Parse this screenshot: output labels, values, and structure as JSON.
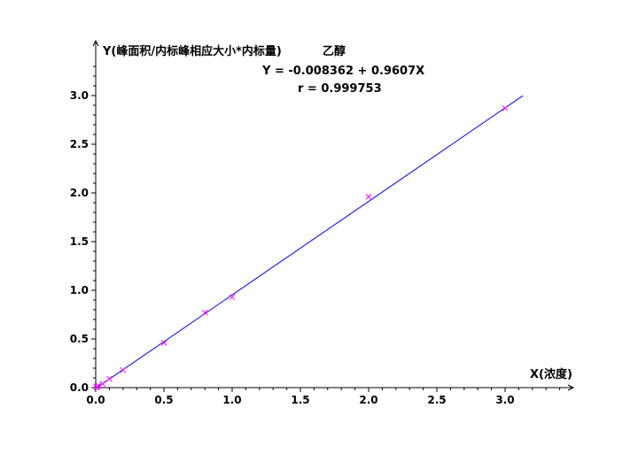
{
  "chart_data": {
    "type": "scatter",
    "title": "乙醇",
    "ylabel": "Y(峰面积/内标峰相应大小*内标量)",
    "xlabel": "X(浓度)",
    "equation": "Y = -0.008362 + 0.9607X",
    "correlation": "r = 0.999753",
    "xlim": [
      0,
      3.5
    ],
    "ylim": [
      0,
      3.0
    ],
    "x_ticks": [
      0.0,
      0.5,
      1.0,
      1.5,
      2.0,
      2.5,
      3.0
    ],
    "y_ticks": [
      0.0,
      0.5,
      1.0,
      1.5,
      2.0,
      2.5,
      3.0
    ],
    "x_tick_labels": [
      "0.0",
      "0.5",
      "1.0",
      "1.5",
      "2.0",
      "2.5",
      "3.0"
    ],
    "y_tick_labels": [
      "0.0",
      "0.5",
      "1.0",
      "1.5",
      "2.0",
      "2.5",
      "3.0"
    ],
    "grid": false,
    "series": [
      {
        "x": [
          0.005,
          0.01,
          0.02,
          0.05,
          0.1,
          0.2,
          0.5,
          0.8,
          1.0,
          2.0,
          3.0
        ],
        "y": [
          0.0,
          0.01,
          0.02,
          0.04,
          0.09,
          0.18,
          0.46,
          0.77,
          0.93,
          1.96,
          2.87
        ],
        "color": "#ff00ff",
        "marker": "x"
      }
    ],
    "fit_line": {
      "intercept": -0.008362,
      "slope": 0.9607,
      "x_range": [
        0,
        3.13
      ],
      "color": "#0000ff"
    }
  }
}
